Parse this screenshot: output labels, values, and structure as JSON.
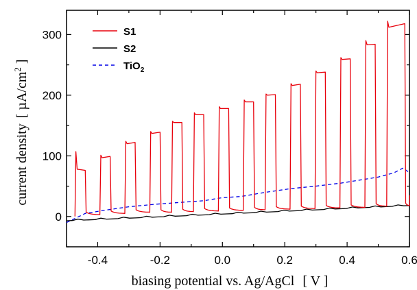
{
  "chart_data": {
    "type": "line",
    "xlabel_main": "biasing potential vs. Ag/AgCl",
    "xlabel_unit": "[ V ]",
    "ylabel_main": "current density",
    "ylabel_unit_pre": "[ µA/cm",
    "ylabel_unit_sup": "2",
    "ylabel_unit_post": " ]",
    "xlim": [
      -0.5,
      0.6
    ],
    "ylim": [
      -50,
      340
    ],
    "x_ticks": [
      -0.4,
      -0.2,
      0.0,
      0.2,
      0.4,
      0.6
    ],
    "x_tick_labels": [
      "-0.4",
      "-0.2",
      "0.0",
      "0.2",
      "0.4",
      "0.6"
    ],
    "y_ticks": [
      0,
      100,
      200,
      300
    ],
    "y_tick_labels": [
      "0",
      "100",
      "200",
      "300"
    ],
    "legend_position": "top-left",
    "grid": false,
    "series": [
      {
        "name": "S1",
        "color": "#e8000b",
        "style": "solid",
        "description_type": "chopped-light pulses",
        "on_starts": [
          -0.47,
          -0.39,
          -0.31,
          -0.23,
          -0.16,
          -0.09,
          -0.01,
          0.07,
          0.14,
          0.22,
          0.3,
          0.38,
          0.46,
          0.53
        ],
        "on_ends": [
          -0.44,
          -0.36,
          -0.28,
          -0.2,
          -0.13,
          -0.06,
          0.02,
          0.1,
          0.17,
          0.25,
          0.33,
          0.41,
          0.49,
          0.585
        ],
        "peak_values": [
          107,
          101,
          124,
          140,
          157,
          171,
          181,
          192,
          202,
          219,
          240,
          262,
          290,
          322
        ],
        "plateau_start_values": [
          78,
          97,
          120,
          137,
          155,
          168,
          178,
          189,
          200,
          216,
          237,
          259,
          283,
          312
        ],
        "plateau_end_values": [
          76,
          99,
          122,
          139,
          155,
          168,
          178,
          189,
          201,
          218,
          238,
          260,
          284,
          318
        ],
        "dark_values": [
          0,
          3,
          5,
          7,
          7,
          8,
          9,
          10,
          11,
          12,
          13,
          14,
          15,
          17,
          18
        ]
      },
      {
        "name": "S2",
        "color": "#000000",
        "style": "solid",
        "start": -7,
        "end": 18
      },
      {
        "name": "TiO",
        "name_sub": "2",
        "color": "#0000e6",
        "style": "dashed",
        "x": [
          -0.5,
          -0.44,
          -0.38,
          -0.3,
          -0.22,
          -0.14,
          -0.06,
          0.0,
          0.06,
          0.14,
          0.22,
          0.3,
          0.38,
          0.44,
          0.5,
          0.55,
          0.58,
          0.6
        ],
        "values": [
          -10,
          5,
          10,
          16,
          20,
          23,
          26,
          31,
          33,
          40,
          46,
          50,
          55,
          60,
          65,
          72,
          80,
          72
        ]
      }
    ]
  }
}
